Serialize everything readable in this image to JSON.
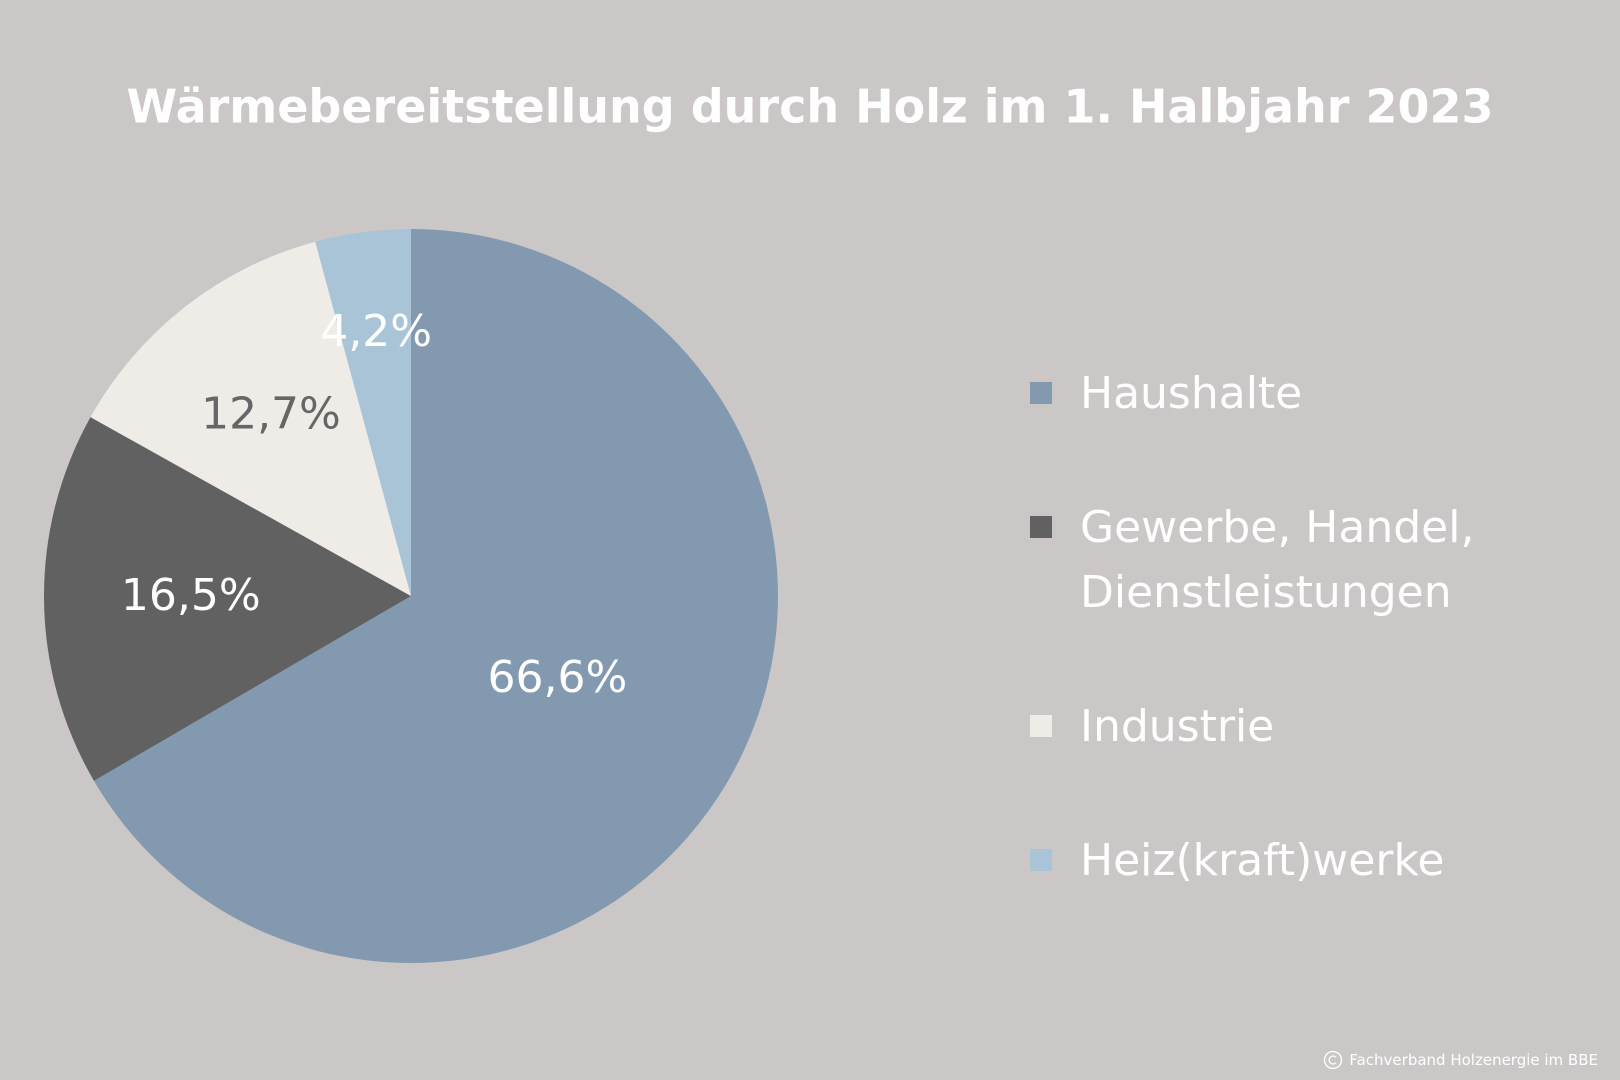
{
  "chart_data": {
    "type": "pie",
    "title": "Wärmebereitstellung durch Holz im 1. Halbjahr 2023",
    "categories": [
      "Haushalte",
      "Gewerbe, Handel, Dienstleistungen",
      "Industrie",
      "Heiz(kraft)werke"
    ],
    "values": [
      66.6,
      16.5,
      12.7,
      4.2
    ],
    "value_labels": [
      "66,6%",
      "16,5%",
      "12,7%",
      "4,2%"
    ],
    "colors": [
      "#8399b0",
      "#616161",
      "#efebe7",
      "#a9c4d6"
    ],
    "legend": "right",
    "source": "Fachverband Holzenergie im BBE"
  }
}
